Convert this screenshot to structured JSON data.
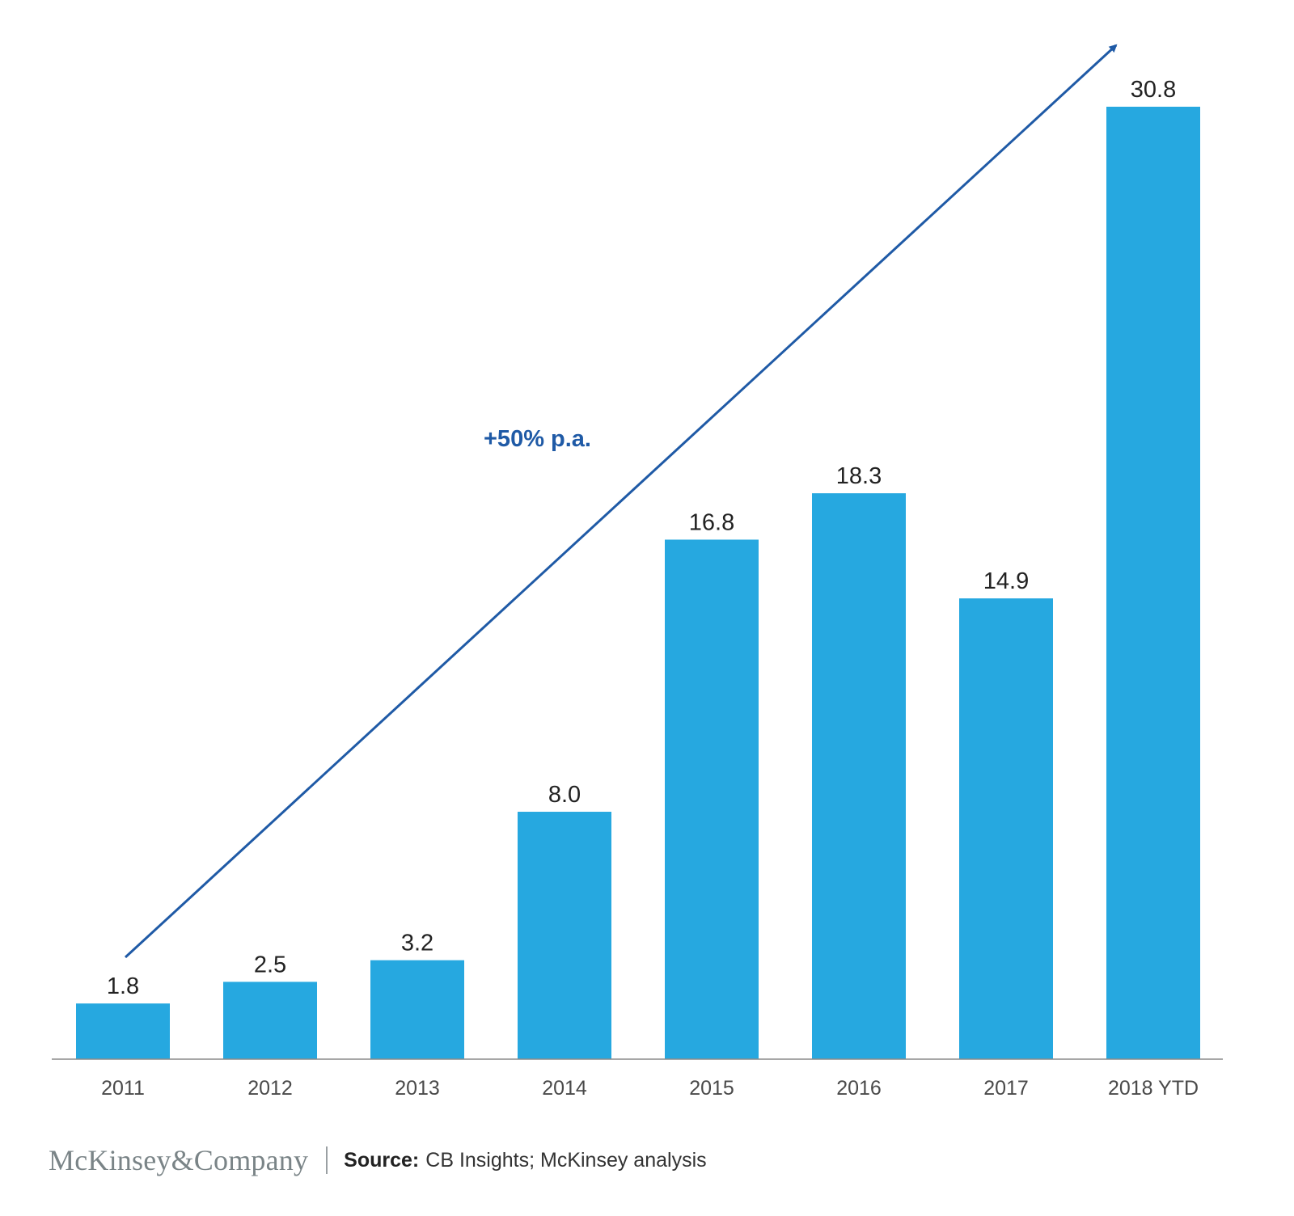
{
  "chart_data": {
    "type": "bar",
    "categories": [
      "2011",
      "2012",
      "2013",
      "2014",
      "2015",
      "2016",
      "2017",
      "2018 YTD"
    ],
    "values": [
      1.8,
      2.5,
      3.2,
      8.0,
      16.8,
      18.3,
      14.9,
      30.8
    ],
    "value_labels": [
      "1.8",
      "2.5",
      "3.2",
      "8.0",
      "16.8",
      "18.3",
      "14.9",
      "30.8"
    ],
    "ylim": [
      0,
      30.8
    ],
    "grid": false,
    "bar_color": "#26a8e0",
    "annotation": {
      "text": "+50% p.a.",
      "color": "#1f5aa6",
      "arrow_from_category": "2011",
      "arrow_to_category": "2018 YTD"
    }
  },
  "footer": {
    "brand": "McKinsey&Company",
    "source_label": "Source:",
    "source_text": "CB Insights; McKinsey analysis"
  }
}
